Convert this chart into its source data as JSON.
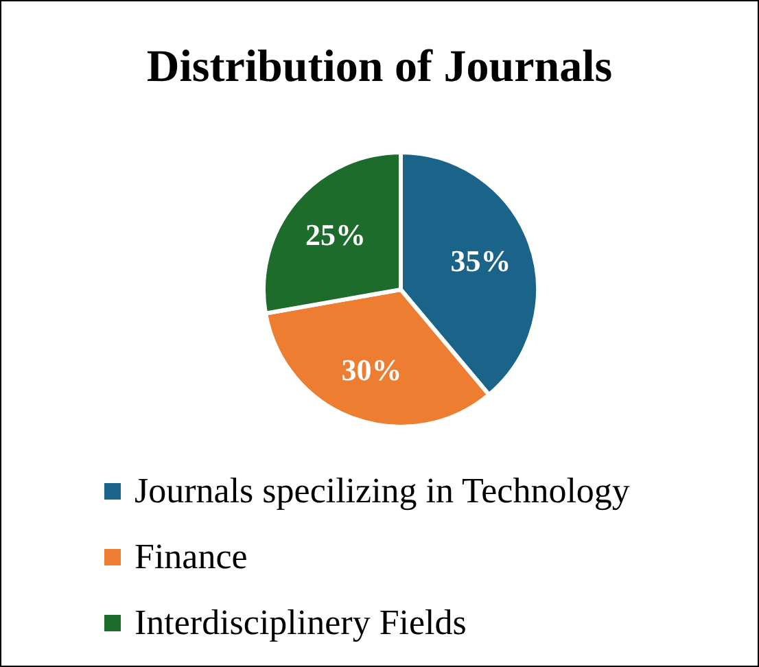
{
  "chart_data": {
    "type": "pie",
    "title": "Distribution of Journals",
    "categories": [
      "Journals specilizing in Technology",
      "Finance",
      "Interdisciplinery Fields"
    ],
    "values": [
      35,
      30,
      25
    ],
    "colors": [
      "#1b6489",
      "#ed7d31",
      "#1d6c2b"
    ],
    "value_labels": [
      "35%",
      "30%",
      "25%"
    ],
    "legend": "bottom"
  }
}
